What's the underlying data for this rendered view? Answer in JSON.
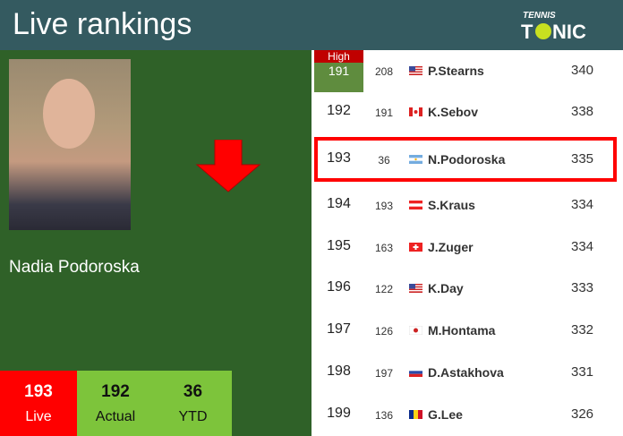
{
  "header": {
    "title": "Live rankings",
    "logo": "TENNIS TONIC"
  },
  "player": {
    "name": "Nadia Podoroska",
    "live": "193",
    "live_label": "Live",
    "actual": "192",
    "actual_label": "Actual",
    "ytd": "36",
    "ytd_label": "YTD",
    "trend": "down-arrow-icon"
  },
  "high_label": "High",
  "colors": {
    "header": "#345a60",
    "panel": "#2f6128",
    "live": "#ff0000",
    "stat": "#7dc43b",
    "highlight": "#ff0000"
  },
  "rows": [
    {
      "rank": "191",
      "prev": "208",
      "flag": "us",
      "name": "P.Stearns",
      "points": "340"
    },
    {
      "rank": "192",
      "prev": "191",
      "flag": "ca",
      "name": "K.Sebov",
      "points": "338"
    },
    {
      "rank": "193",
      "prev": "36",
      "flag": "ar",
      "name": "N.Podoroska",
      "points": "335"
    },
    {
      "rank": "194",
      "prev": "193",
      "flag": "at",
      "name": "S.Kraus",
      "points": "334"
    },
    {
      "rank": "195",
      "prev": "163",
      "flag": "ch",
      "name": "J.Zuger",
      "points": "334"
    },
    {
      "rank": "196",
      "prev": "122",
      "flag": "us",
      "name": "K.Day",
      "points": "333"
    },
    {
      "rank": "197",
      "prev": "126",
      "flag": "jp",
      "name": "M.Hontama",
      "points": "332"
    },
    {
      "rank": "198",
      "prev": "197",
      "flag": "ru",
      "name": "D.Astakhova",
      "points": "331"
    },
    {
      "rank": "199",
      "prev": "136",
      "flag": "ro",
      "name": "G.Lee",
      "points": "326"
    }
  ]
}
